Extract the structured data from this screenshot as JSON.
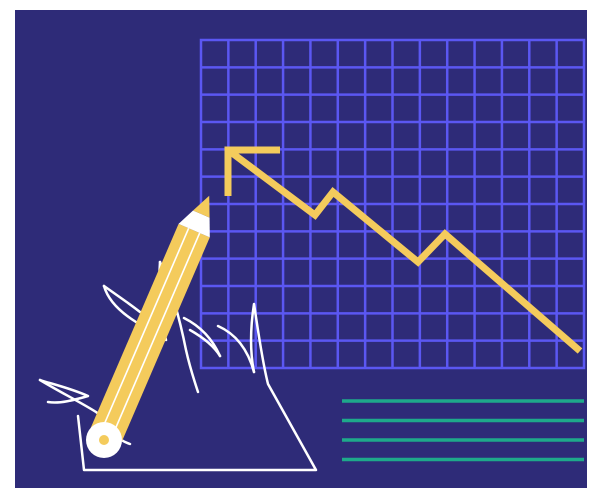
{
  "illustration": {
    "colors": {
      "background": "#2E2B78",
      "grid": "#5B57F2",
      "trend_line": "#F4CB5C",
      "pencil_body": "#F4CB5C",
      "pencil_stripe": "#FFFFFF",
      "pencil_end": "#FFFFFF",
      "pencil_end_center": "#F4CB5C",
      "hand_outline": "#FFFFFF",
      "text_lines": "#1EA98B",
      "border": "#FFFFFF"
    },
    "grid": {
      "columns": 14,
      "rows": 12
    },
    "text_line_count": 4,
    "icons": [
      "hand-icon",
      "pencil-icon",
      "arrow-icon"
    ]
  }
}
